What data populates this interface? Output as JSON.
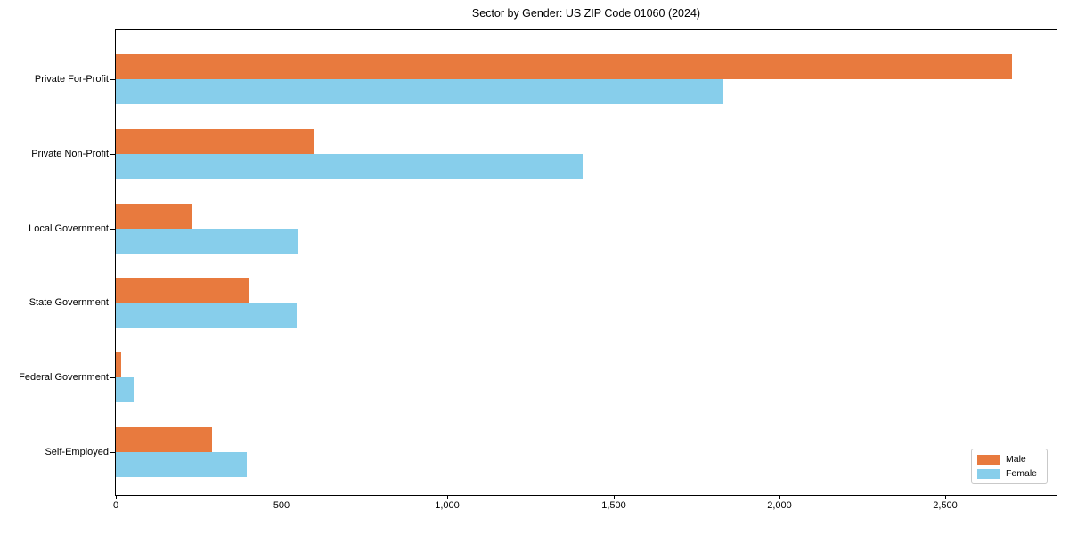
{
  "figure": {
    "title": "Sector by Gender: US ZIP Code 01060 (2024)"
  },
  "chart_data": {
    "type": "bar",
    "orientation": "horizontal",
    "title": "Sector by Gender: US ZIP Code 01060 (2024)",
    "categories": [
      "Private For-Profit",
      "Private Non-Profit",
      "Local Government",
      "State Government",
      "Federal Government",
      "Self-Employed"
    ],
    "series": [
      {
        "name": "Male",
        "color": "#E87A3E",
        "values": [
          2700,
          595,
          230,
          400,
          15,
          290
        ]
      },
      {
        "name": "Female",
        "color": "#87CEEB",
        "values": [
          1830,
          1410,
          550,
          545,
          55,
          395
        ]
      }
    ],
    "xlabel": "",
    "ylabel": "",
    "xlim": [
      0,
      2835
    ],
    "xticks": [
      0,
      500,
      1000,
      1500,
      2000,
      2500
    ],
    "xtick_labels": [
      "0",
      "500",
      "1,000",
      "1,500",
      "2,000",
      "2,500"
    ],
    "grid": false,
    "legend_position": "lower right",
    "background_color": "#ffffff",
    "axis_color": "#000000"
  },
  "legend": {
    "items": [
      {
        "label": "Male",
        "color": "#E87A3E"
      },
      {
        "label": "Female",
        "color": "#87CEEB"
      }
    ]
  }
}
